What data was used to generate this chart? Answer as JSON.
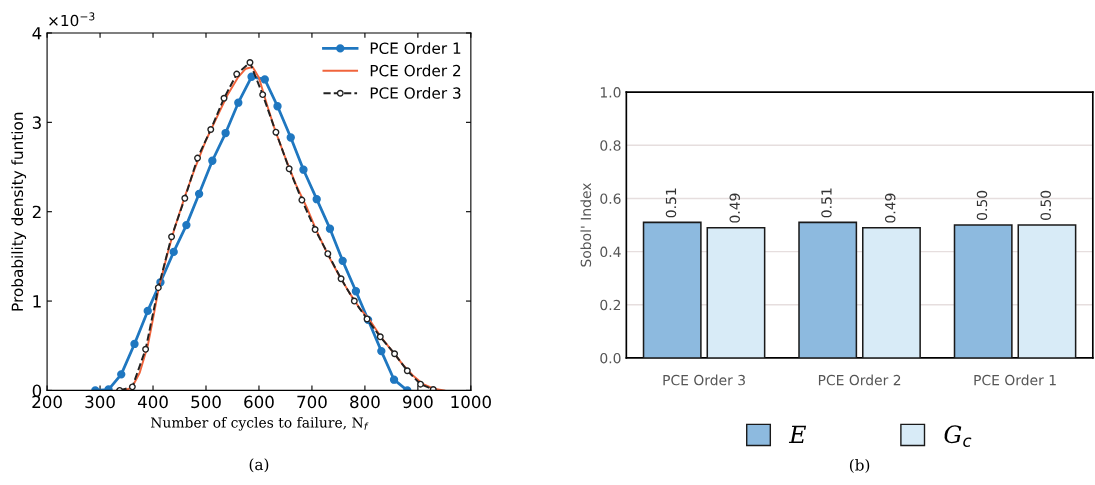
{
  "chart_data": [
    {
      "type": "line",
      "xlabel": "Number of cycles to failure, N$_{f}$",
      "ylabel": "Probability density funtion",
      "xlim": [
        200,
        1000
      ],
      "xticks": [
        200,
        300,
        400,
        500,
        600,
        700,
        800,
        900,
        1000
      ],
      "ylim": [
        0,
        4
      ],
      "yticks": [
        0,
        1,
        2,
        3,
        4
      ],
      "legend": "top right",
      "grid": false,
      "annotations": [
        "×10$^{−3}$",
        "(a)"
      ],
      "series": [
        {
          "name": "PCE Order 1",
          "color": "#1f77c0",
          "marker": "circle",
          "line_style": "solid",
          "x": [
            291,
            316,
            340,
            365,
            390,
            414,
            439,
            463,
            487,
            512,
            537,
            561,
            586,
            611,
            635,
            660,
            684,
            709,
            734,
            758,
            783,
            806,
            831,
            855,
            880
          ],
          "values": [
            0,
            0.01,
            0.18,
            0.52,
            0.89,
            1.21,
            1.55,
            1.85,
            2.2,
            2.57,
            2.88,
            3.22,
            3.51,
            3.48,
            3.18,
            2.83,
            2.47,
            2.14,
            1.81,
            1.45,
            1.11,
            0.79,
            0.44,
            0.12,
            0
          ]
        },
        {
          "name": "PCE Order 2",
          "color": "#f0643c",
          "marker": "none",
          "line_style": "solid",
          "x": [
            332,
            345,
            360,
            375,
            390,
            400,
            410,
            425,
            440,
            460,
            480,
            500,
            520,
            540,
            560,
            575,
            588,
            600,
            615,
            630,
            650,
            670,
            690,
            710,
            730,
            750,
            770,
            790,
            810,
            830,
            850,
            870,
            890,
            910,
            930,
            950
          ],
          "values": [
            0,
            0,
            0.03,
            0.2,
            0.5,
            0.8,
            1.12,
            1.48,
            1.8,
            2.17,
            2.5,
            2.8,
            3.05,
            3.3,
            3.5,
            3.6,
            3.62,
            3.5,
            3.2,
            2.92,
            2.6,
            2.3,
            2.05,
            1.77,
            1.52,
            1.3,
            1.1,
            0.92,
            0.78,
            0.6,
            0.45,
            0.3,
            0.17,
            0.07,
            0.02,
            0
          ]
        },
        {
          "name": "PCE Order 3",
          "color": "#222222",
          "marker": "circle",
          "line_style": "dashed",
          "x": [
            337,
            361,
            386,
            410,
            435,
            460,
            484,
            509,
            534,
            558,
            583,
            607,
            632,
            657,
            681,
            706,
            730,
            755,
            780,
            804,
            829,
            856,
            880,
            905,
            929
          ],
          "values": [
            0,
            0.04,
            0.46,
            1.15,
            1.72,
            2.15,
            2.6,
            2.92,
            3.27,
            3.54,
            3.67,
            3.31,
            2.89,
            2.48,
            2.13,
            1.8,
            1.53,
            1.25,
            1.0,
            0.8,
            0.6,
            0.41,
            0.22,
            0.07,
            0.01
          ]
        }
      ]
    },
    {
      "type": "bar",
      "ylabel": "Sobol' Index",
      "categories": [
        "PCE Order 3",
        "PCE Order 2",
        "PCE Order 1"
      ],
      "ylim": [
        0,
        1
      ],
      "yticks": [
        {
          "value": 0,
          "label": "0.0"
        },
        {
          "value": 0.2,
          "label": "0.2"
        },
        {
          "value": 0.4,
          "label": "0.4"
        },
        {
          "value": 0.6,
          "label": "0.6"
        },
        {
          "value": 0.8,
          "label": "0.8"
        },
        {
          "value": 1,
          "label": "1.0"
        }
      ],
      "grid": "y",
      "legend": "bottom",
      "annotations": [
        "(b)"
      ],
      "series": [
        {
          "name": "E",
          "color": "#8dbadf",
          "values": [
            0.51,
            0.51,
            0.5
          ],
          "value_labels": [
            "0.51",
            "0.51",
            "0.50"
          ]
        },
        {
          "name": "G$_{c}$",
          "color": "#d8ebf7",
          "values": [
            0.49,
            0.49,
            0.5
          ],
          "value_labels": [
            "0.49",
            "0.49",
            "0.50"
          ]
        }
      ]
    }
  ]
}
